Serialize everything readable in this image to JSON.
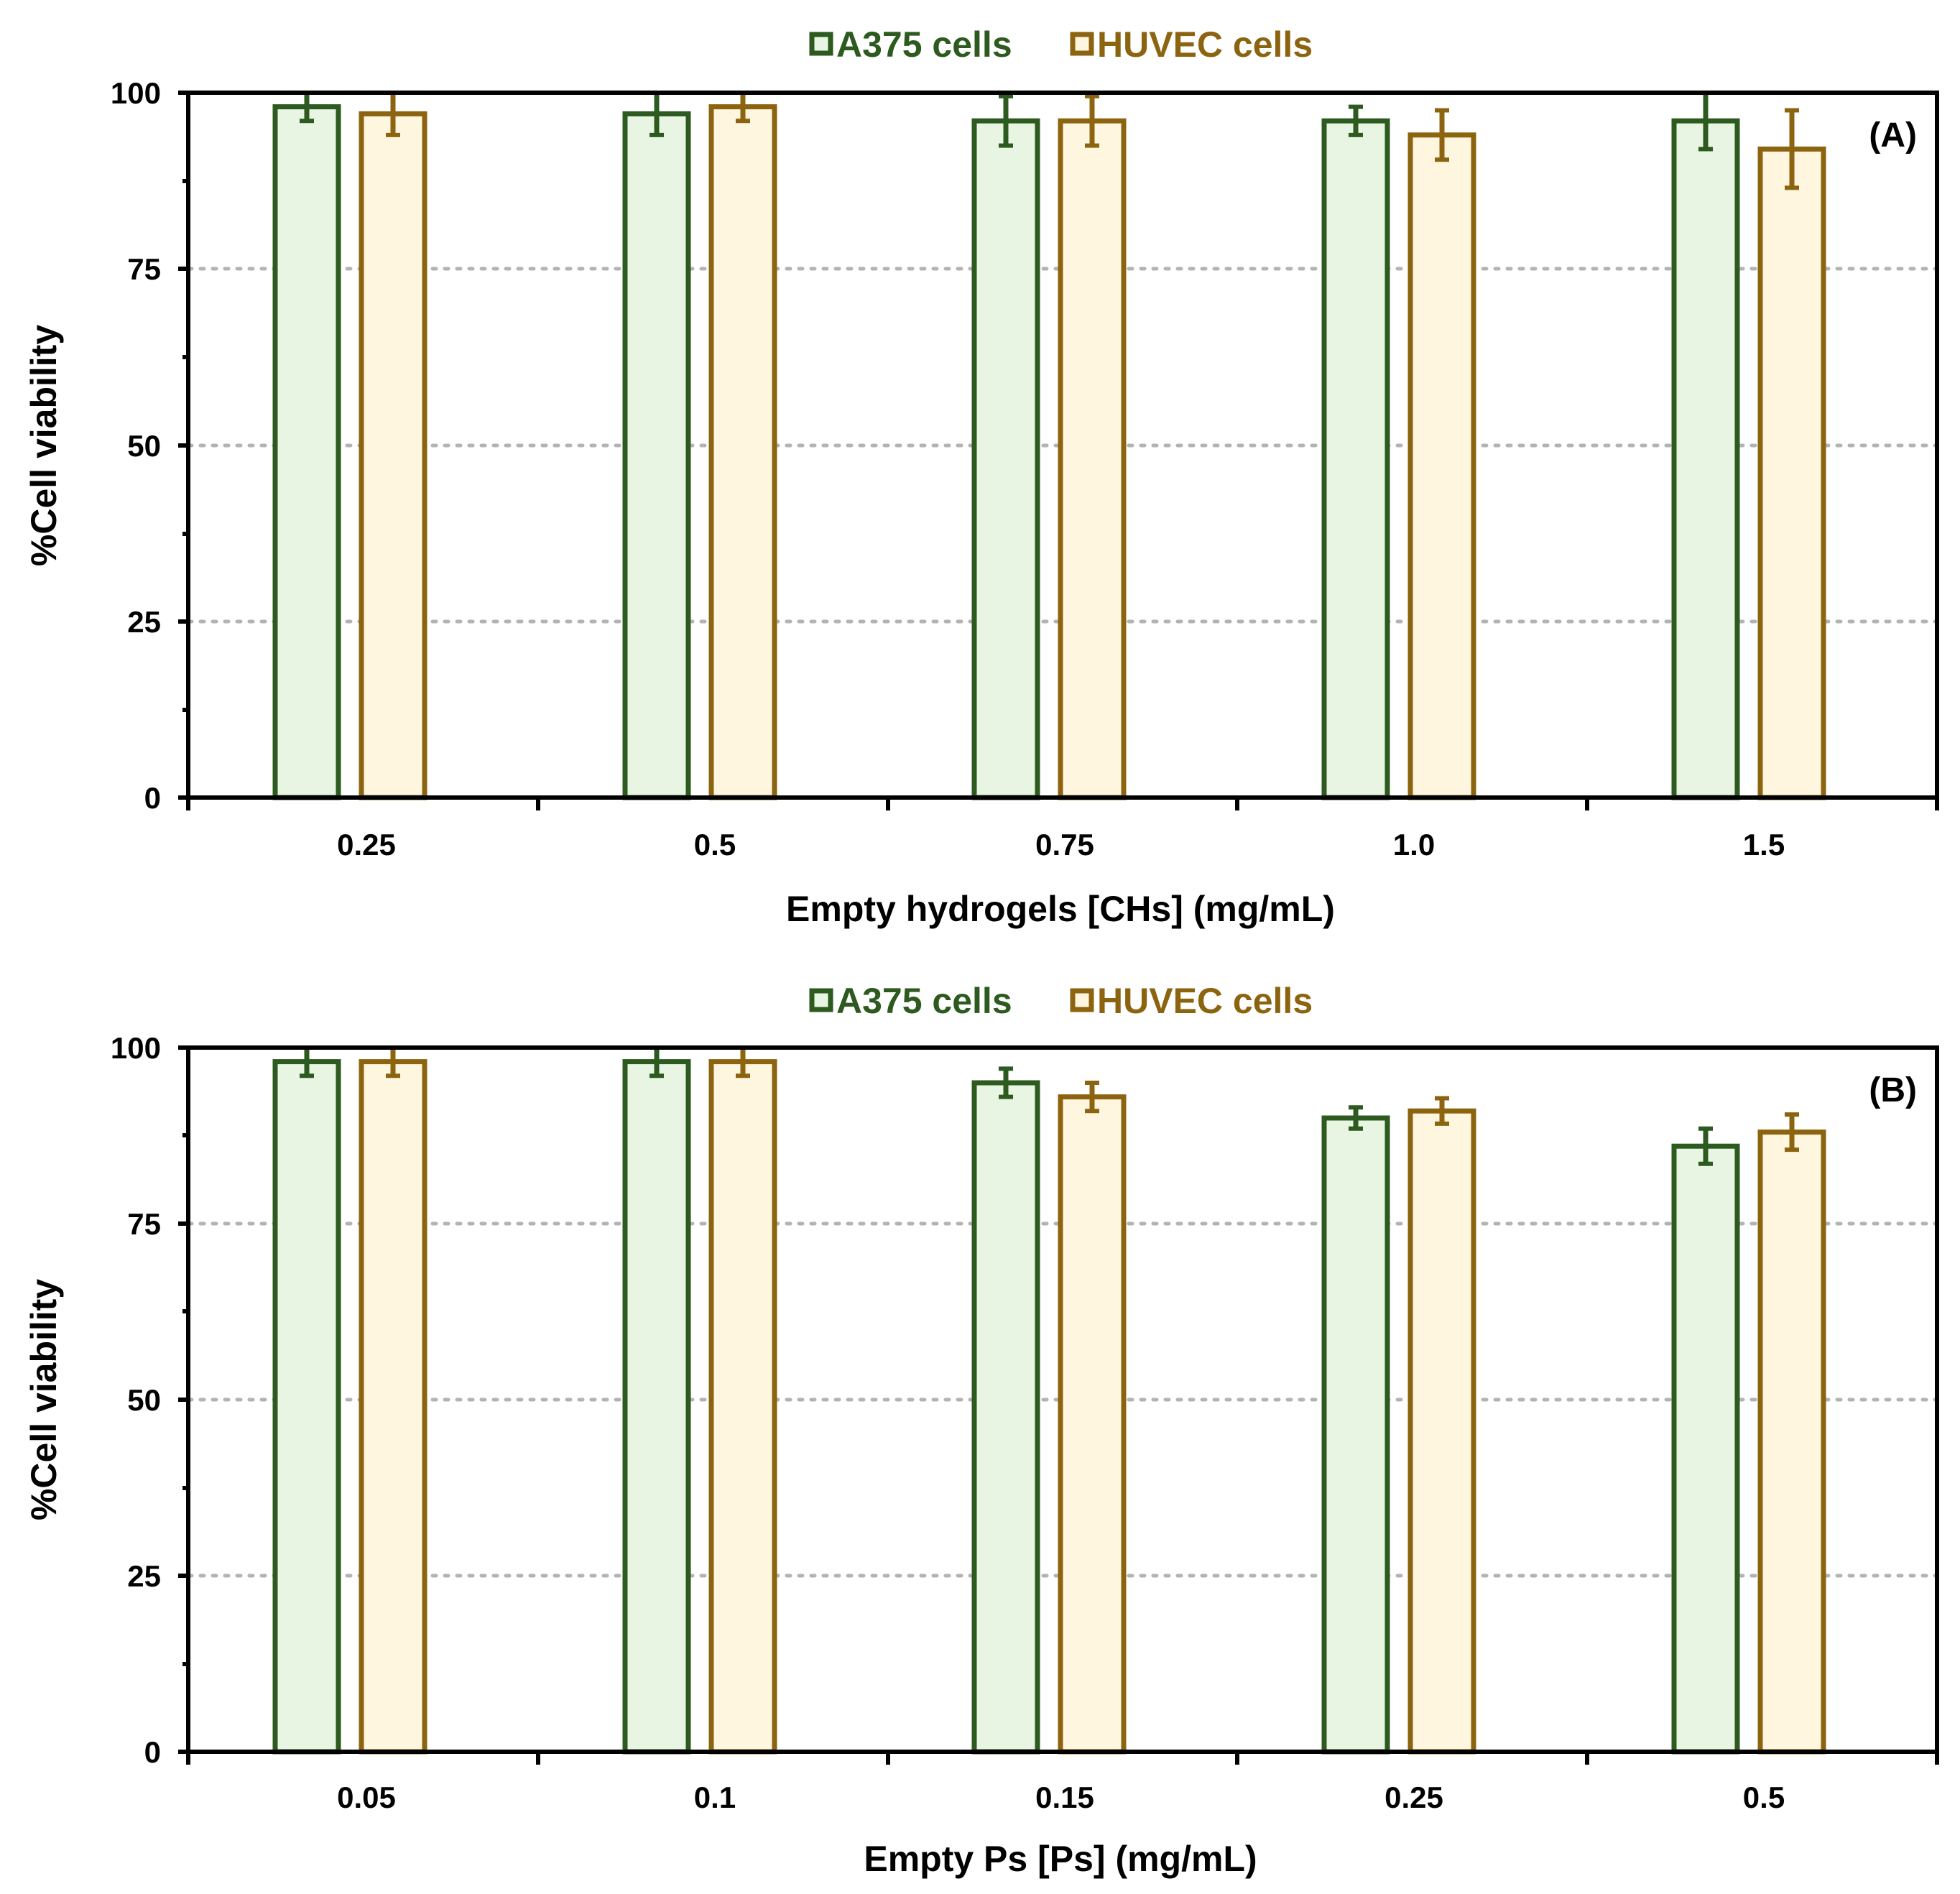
{
  "colors": {
    "a375_stroke": "#2c5a1f",
    "a375_fill": "#e9f5e3",
    "huvec_stroke": "#8c6410",
    "huvec_fill": "#fff6df",
    "grid": "#b3b3b3",
    "axis": "#000000"
  },
  "chart_data": [
    {
      "type": "bar",
      "panel_label": "(A)",
      "title": "",
      "xlabel": "Empty hydrogels [CHs] (mg/mL)",
      "ylabel": "%Cell viability",
      "ylim": [
        0,
        100
      ],
      "yticks": [
        "0",
        "25",
        "50",
        "75",
        "100"
      ],
      "grid": "horizontal dotted at 25, 50, 75",
      "legend_position": "top-center",
      "categories": [
        "0.25",
        "0.5",
        "0.75",
        "1.0",
        "1.5"
      ],
      "series": [
        {
          "name": "A375 cells",
          "values": [
            98,
            97,
            96,
            96,
            96
          ],
          "errors": [
            2,
            3,
            3.5,
            2,
            4
          ]
        },
        {
          "name": "HUVEC cells",
          "values": [
            97,
            98,
            96,
            94,
            92
          ],
          "errors": [
            3,
            2,
            3.5,
            3.5,
            5.5
          ]
        }
      ]
    },
    {
      "type": "bar",
      "panel_label": "(B)",
      "title": "",
      "xlabel": "Empty Ps [Ps] (mg/mL)",
      "ylabel": "%Cell viability",
      "ylim": [
        0,
        100
      ],
      "yticks": [
        "0",
        "25",
        "50",
        "75",
        "100"
      ],
      "grid": "horizontal dotted at 25, 50, 75",
      "legend_position": "top-center",
      "categories": [
        "0.05",
        "0.1",
        "0.15",
        "0.25",
        "0.5"
      ],
      "series": [
        {
          "name": "A375 cells",
          "values": [
            98,
            98,
            95,
            90,
            86
          ],
          "errors": [
            2,
            2,
            2,
            1.5,
            2.5
          ]
        },
        {
          "name": "HUVEC cells",
          "values": [
            98,
            98,
            93,
            91,
            88
          ],
          "errors": [
            2,
            2,
            2,
            1.8,
            2.5
          ]
        }
      ]
    }
  ]
}
